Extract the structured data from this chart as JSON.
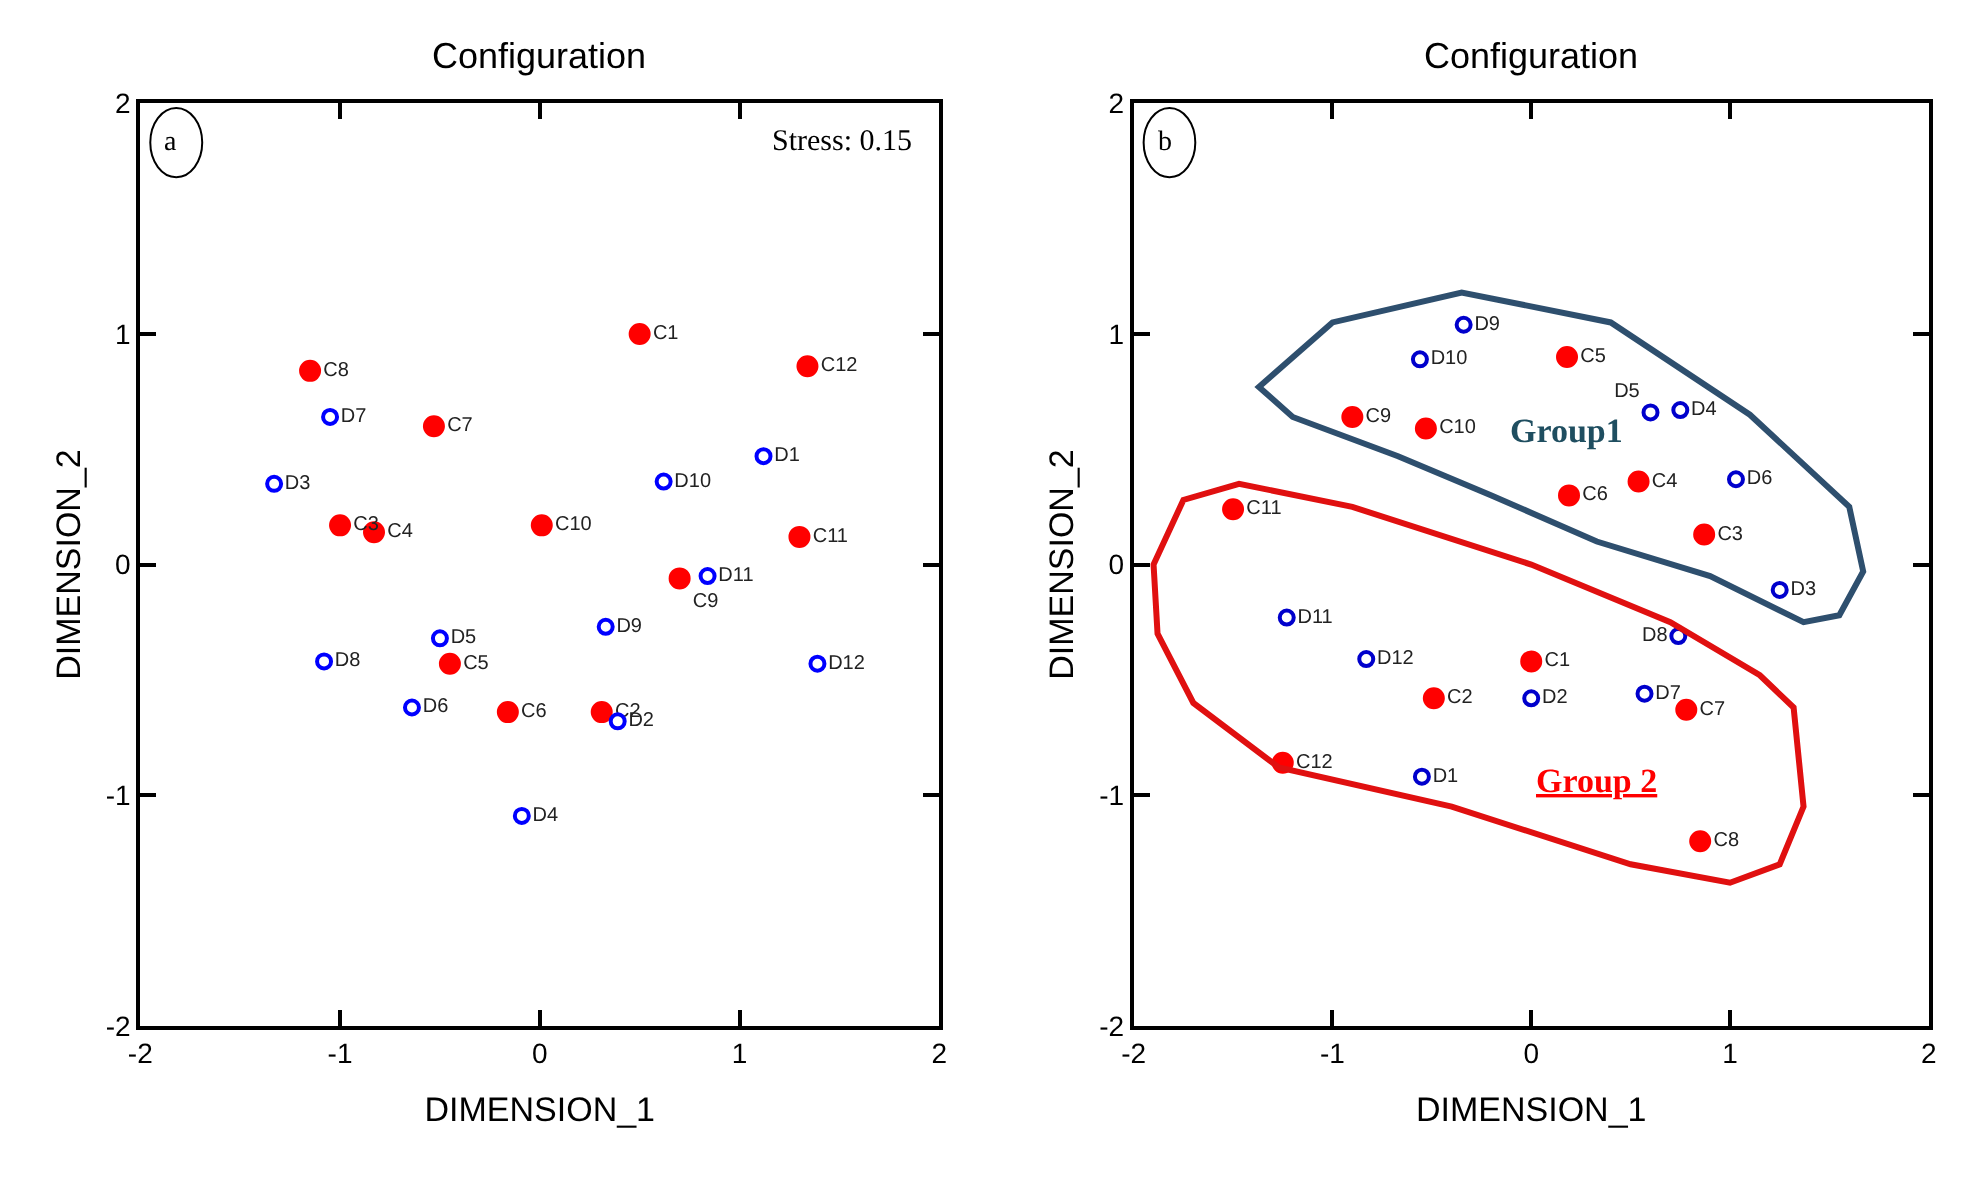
{
  "chart_data": [
    {
      "type": "scatter",
      "title": "Configuration",
      "xlabel": "DIMENSION_1",
      "ylabel": "DIMENSION_2",
      "xlim": [
        -2,
        2
      ],
      "ylim": [
        -2,
        2
      ],
      "xticks": [
        -2,
        -1,
        0,
        1,
        2
      ],
      "yticks": [
        -2,
        -1,
        0,
        1,
        2
      ],
      "annotations": [
        "a",
        "Stress: 0.15"
      ],
      "series": [
        {
          "color": "#ff0000",
          "marker": "circle",
          "x": [
            0.5,
            0.31,
            -1.0,
            -0.83,
            -0.45,
            -0.16,
            -0.53,
            -1.15,
            0.7,
            0.01,
            1.3,
            1.34
          ],
          "values": [
            1.0,
            -0.64,
            0.17,
            0.14,
            -0.43,
            -0.64,
            0.6,
            0.84,
            -0.06,
            0.17,
            0.12,
            0.86
          ],
          "value_labels": [
            "C1",
            "C2",
            "C3",
            "C4",
            "C5",
            "C6",
            "C7",
            "C8",
            "C9",
            "C10",
            "C11",
            "C12"
          ]
        },
        {
          "color": "#0000ff",
          "marker": "circle-open",
          "x": [
            1.12,
            0.39,
            -1.33,
            -0.09,
            -0.5,
            -0.64,
            -1.05,
            -1.08,
            0.33,
            0.62,
            0.84,
            1.39
          ],
          "values": [
            0.47,
            -0.68,
            0.35,
            -1.09,
            -0.32,
            -0.62,
            0.64,
            -0.42,
            -0.27,
            0.36,
            -0.05,
            -0.43
          ],
          "value_labels": [
            "D1",
            "D2",
            "D3",
            "D4",
            "D5",
            "D6",
            "D7",
            "D8",
            "D9",
            "D10",
            "D11",
            "D12"
          ]
        }
      ]
    },
    {
      "type": "scatter",
      "title": "Configuration",
      "xlabel": "DIMENSION_1",
      "ylabel": "DIMENSION_2",
      "xlim": [
        -2,
        2
      ],
      "ylim": [
        -2,
        2
      ],
      "xticks": [
        -2,
        -1,
        0,
        1,
        2
      ],
      "yticks": [
        -2,
        -1,
        0,
        1,
        2
      ],
      "annotations": [
        "b",
        "Group1",
        "Group 2"
      ],
      "series": [
        {
          "color": "#ff0000",
          "marker": "circle",
          "x": [
            0.0,
            -0.49,
            0.87,
            0.54,
            0.18,
            0.19,
            0.78,
            0.85,
            -0.9,
            -0.53,
            -1.5,
            -1.25
          ],
          "values": [
            -0.42,
            -0.58,
            0.13,
            0.36,
            0.9,
            0.3,
            -0.63,
            -1.2,
            0.64,
            0.59,
            0.24,
            -0.86
          ],
          "value_labels": [
            "C1",
            "C2",
            "C3",
            "C4",
            "C5",
            "C6",
            "C7",
            "C8",
            "C9",
            "C10",
            "C11",
            "C12"
          ]
        },
        {
          "color": "#0000cc",
          "marker": "circle-open",
          "x": [
            -0.55,
            0.0,
            1.25,
            0.75,
            0.6,
            1.03,
            0.57,
            0.74,
            -0.34,
            -0.56,
            -1.23,
            -0.83
          ],
          "values": [
            -0.92,
            -0.58,
            -0.11,
            0.67,
            0.66,
            0.37,
            -0.56,
            -0.31,
            1.04,
            0.89,
            -0.23,
            -0.41
          ],
          "value_labels": [
            "D1",
            "D2",
            "D3",
            "D4",
            "D5",
            "D6",
            "D7",
            "D8",
            "D9",
            "D10",
            "D11",
            "D12"
          ]
        }
      ]
    }
  ]
}
